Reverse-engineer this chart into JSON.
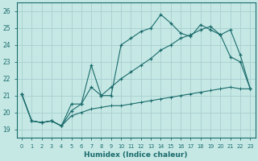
{
  "xlabel": "Humidex (Indice chaleur)",
  "xlim": [
    -0.5,
    23.5
  ],
  "ylim": [
    18.5,
    26.5
  ],
  "yticks": [
    19,
    20,
    21,
    22,
    23,
    24,
    25,
    26
  ],
  "xticks": [
    0,
    1,
    2,
    3,
    4,
    5,
    6,
    7,
    8,
    9,
    10,
    11,
    12,
    13,
    14,
    15,
    16,
    17,
    18,
    19,
    20,
    21,
    22,
    23
  ],
  "bg_color": "#c5e8e5",
  "grid_color": "#a8cece",
  "line_color": "#1a6b6b",
  "line1_x": [
    0,
    1,
    2,
    3,
    4,
    5,
    6,
    7,
    8,
    9,
    10,
    11,
    12,
    13,
    14,
    15,
    16,
    17,
    18,
    19,
    20,
    21,
    22,
    23
  ],
  "line1_y": [
    21.1,
    19.5,
    19.4,
    19.5,
    19.2,
    20.5,
    20.5,
    22.8,
    21.0,
    21.0,
    24.0,
    24.4,
    24.8,
    25.0,
    25.8,
    25.3,
    24.7,
    24.5,
    25.2,
    24.9,
    24.6,
    23.3,
    23.0,
    21.4
  ],
  "line2_x": [
    0,
    1,
    2,
    3,
    4,
    5,
    6,
    7,
    8,
    9,
    10,
    11,
    12,
    13,
    14,
    15,
    16,
    17,
    18,
    19,
    20,
    21,
    22,
    23
  ],
  "line2_y": [
    21.1,
    19.5,
    19.4,
    19.5,
    19.2,
    20.1,
    20.5,
    21.5,
    21.0,
    21.5,
    22.0,
    22.4,
    22.8,
    23.2,
    23.7,
    24.0,
    24.4,
    24.6,
    24.9,
    25.1,
    24.6,
    24.9,
    23.4,
    21.4
  ],
  "line3_x": [
    0,
    1,
    2,
    3,
    4,
    5,
    6,
    7,
    8,
    9,
    10,
    11,
    12,
    13,
    14,
    15,
    16,
    17,
    18,
    19,
    20,
    21,
    22,
    23
  ],
  "line3_y": [
    21.1,
    19.5,
    19.4,
    19.5,
    19.2,
    19.8,
    20.0,
    20.2,
    20.3,
    20.4,
    20.4,
    20.5,
    20.6,
    20.7,
    20.8,
    20.9,
    21.0,
    21.1,
    21.2,
    21.3,
    21.4,
    21.5,
    21.4,
    21.4
  ]
}
